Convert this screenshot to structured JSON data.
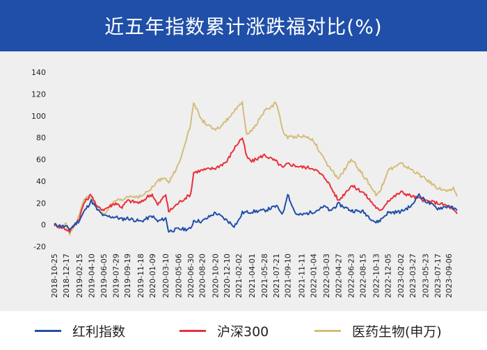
{
  "title": "近五年指数累计涨跌福对比(%)",
  "chart_data": {
    "type": "line",
    "title": "近五年指数累计涨跌福对比(%)",
    "ylim": [
      -20,
      140
    ],
    "yticks": [
      -20,
      0,
      20,
      40,
      60,
      80,
      100,
      120,
      140
    ],
    "x_dates": [
      "2018-10-25",
      "2018-12-17",
      "2019-02-15",
      "2019-04-10",
      "2019-06-05",
      "2019-07-29",
      "2019-09-19",
      "2019-11-18",
      "2020-01-09",
      "2020-03-10",
      "2020-05-06",
      "2020-06-30",
      "2020-08-20",
      "2020-10-20",
      "2020-12-10",
      "2021-02-02",
      "2021-04-01",
      "2021-05-28",
      "2021-07-21",
      "2021-09-10",
      "2021-11-11",
      "2022-01-04",
      "2022-03-03",
      "2022-04-27",
      "2022-06-23",
      "2022-08-15",
      "2022-10-13",
      "2022-12-05",
      "2023-02-02",
      "2023-03-27",
      "2023-05-23",
      "2023-07-17",
      "2023-09-06"
    ],
    "series": [
      {
        "name": "红利指数",
        "color": "#1f4fa8",
        "values": [
          [
            "2018-10-25",
            0
          ],
          [
            "2018-12-17",
            -2
          ],
          [
            "2019-01-03",
            -4
          ],
          [
            "2019-02-15",
            4
          ],
          [
            "2019-03-08",
            12
          ],
          [
            "2019-04-10",
            22
          ],
          [
            "2019-05-06",
            14
          ],
          [
            "2019-06-05",
            8
          ],
          [
            "2019-07-29",
            7
          ],
          [
            "2019-08-26",
            5
          ],
          [
            "2019-09-19",
            6
          ],
          [
            "2019-11-18",
            3
          ],
          [
            "2019-12-20",
            6
          ],
          [
            "2020-01-09",
            8
          ],
          [
            "2020-02-03",
            3
          ],
          [
            "2020-03-10",
            6
          ],
          [
            "2020-03-23",
            -6
          ],
          [
            "2020-05-06",
            -4
          ],
          [
            "2020-06-30",
            -4
          ],
          [
            "2020-07-14",
            4
          ],
          [
            "2020-08-20",
            3
          ],
          [
            "2020-10-20",
            11
          ],
          [
            "2020-12-10",
            4
          ],
          [
            "2021-01-12",
            -1
          ],
          [
            "2021-02-02",
            4
          ],
          [
            "2021-02-18",
            11
          ],
          [
            "2021-04-01",
            12
          ],
          [
            "2021-05-28",
            13
          ],
          [
            "2021-07-21",
            17
          ],
          [
            "2021-08-20",
            10
          ],
          [
            "2021-09-10",
            29
          ],
          [
            "2021-09-28",
            18
          ],
          [
            "2021-10-20",
            9
          ],
          [
            "2021-11-11",
            9
          ],
          [
            "2022-01-04",
            12
          ],
          [
            "2022-03-03",
            17
          ],
          [
            "2022-03-15",
            12
          ],
          [
            "2022-04-27",
            19
          ],
          [
            "2022-06-23",
            13
          ],
          [
            "2022-08-15",
            12
          ],
          [
            "2022-10-13",
            2
          ],
          [
            "2022-10-31",
            4
          ],
          [
            "2022-12-05",
            11
          ],
          [
            "2023-02-02",
            12
          ],
          [
            "2023-03-27",
            18
          ],
          [
            "2023-04-20",
            28
          ],
          [
            "2023-05-23",
            22
          ],
          [
            "2023-07-17",
            15
          ],
          [
            "2023-09-06",
            17
          ],
          [
            "2023-10-13",
            13
          ]
        ]
      },
      {
        "name": "沪深300",
        "color": "#e8303a",
        "values": [
          [
            "2018-10-25",
            0
          ],
          [
            "2018-12-17",
            -4
          ],
          [
            "2019-01-03",
            -6
          ],
          [
            "2019-02-15",
            6
          ],
          [
            "2019-03-08",
            20
          ],
          [
            "2019-04-10",
            28
          ],
          [
            "2019-05-06",
            16
          ],
          [
            "2019-06-05",
            14
          ],
          [
            "2019-07-29",
            20
          ],
          [
            "2019-08-26",
            16
          ],
          [
            "2019-09-19",
            22
          ],
          [
            "2019-11-18",
            20
          ],
          [
            "2019-12-20",
            26
          ],
          [
            "2020-01-09",
            28
          ],
          [
            "2020-02-03",
            18
          ],
          [
            "2020-03-10",
            28
          ],
          [
            "2020-03-23",
            12
          ],
          [
            "2020-05-06",
            20
          ],
          [
            "2020-06-30",
            28
          ],
          [
            "2020-07-14",
            48
          ],
          [
            "2020-08-20",
            50
          ],
          [
            "2020-10-20",
            52
          ],
          [
            "2020-12-10",
            58
          ],
          [
            "2021-01-12",
            70
          ],
          [
            "2021-02-02",
            76
          ],
          [
            "2021-02-18",
            80
          ],
          [
            "2021-03-10",
            62
          ],
          [
            "2021-04-01",
            58
          ],
          [
            "2021-05-28",
            64
          ],
          [
            "2021-07-21",
            58
          ],
          [
            "2021-08-20",
            52
          ],
          [
            "2021-09-10",
            56
          ],
          [
            "2021-11-11",
            53
          ],
          [
            "2022-01-04",
            52
          ],
          [
            "2022-03-03",
            42
          ],
          [
            "2022-04-27",
            22
          ],
          [
            "2022-06-23",
            36
          ],
          [
            "2022-08-15",
            30
          ],
          [
            "2022-10-13",
            16
          ],
          [
            "2022-10-31",
            12
          ],
          [
            "2022-12-05",
            22
          ],
          [
            "2023-02-02",
            30
          ],
          [
            "2023-03-27",
            26
          ],
          [
            "2023-05-23",
            22
          ],
          [
            "2023-07-17",
            20
          ],
          [
            "2023-09-06",
            17
          ],
          [
            "2023-10-13",
            10
          ]
        ]
      },
      {
        "name": "医药生物(申万)",
        "color": "#d4bc7a",
        "values": [
          [
            "2018-10-25",
            0
          ],
          [
            "2018-12-17",
            0
          ],
          [
            "2019-01-03",
            -8
          ],
          [
            "2019-02-15",
            8
          ],
          [
            "2019-03-08",
            24
          ],
          [
            "2019-04-10",
            26
          ],
          [
            "2019-05-06",
            14
          ],
          [
            "2019-06-05",
            10
          ],
          [
            "2019-07-29",
            22
          ],
          [
            "2019-08-26",
            22
          ],
          [
            "2019-09-19",
            26
          ],
          [
            "2019-11-18",
            26
          ],
          [
            "2019-12-20",
            30
          ],
          [
            "2020-01-09",
            34
          ],
          [
            "2020-02-03",
            40
          ],
          [
            "2020-03-10",
            44
          ],
          [
            "2020-03-23",
            38
          ],
          [
            "2020-05-06",
            55
          ],
          [
            "2020-06-30",
            92
          ],
          [
            "2020-07-14",
            112
          ],
          [
            "2020-08-20",
            96
          ],
          [
            "2020-10-20",
            86
          ],
          [
            "2020-12-10",
            96
          ],
          [
            "2021-01-12",
            104
          ],
          [
            "2021-02-02",
            108
          ],
          [
            "2021-02-18",
            112
          ],
          [
            "2021-03-10",
            82
          ],
          [
            "2021-04-01",
            86
          ],
          [
            "2021-05-28",
            104
          ],
          [
            "2021-07-21",
            112
          ],
          [
            "2021-08-20",
            86
          ],
          [
            "2021-09-10",
            80
          ],
          [
            "2021-11-11",
            82
          ],
          [
            "2022-01-04",
            78
          ],
          [
            "2022-03-03",
            56
          ],
          [
            "2022-04-27",
            42
          ],
          [
            "2022-06-23",
            60
          ],
          [
            "2022-08-15",
            46
          ],
          [
            "2022-10-13",
            28
          ],
          [
            "2022-10-31",
            30
          ],
          [
            "2022-12-05",
            50
          ],
          [
            "2023-02-02",
            56
          ],
          [
            "2023-03-27",
            50
          ],
          [
            "2023-05-23",
            42
          ],
          [
            "2023-07-17",
            34
          ],
          [
            "2023-09-06",
            30
          ],
          [
            "2023-09-27",
            34
          ],
          [
            "2023-10-13",
            26
          ]
        ]
      }
    ]
  }
}
